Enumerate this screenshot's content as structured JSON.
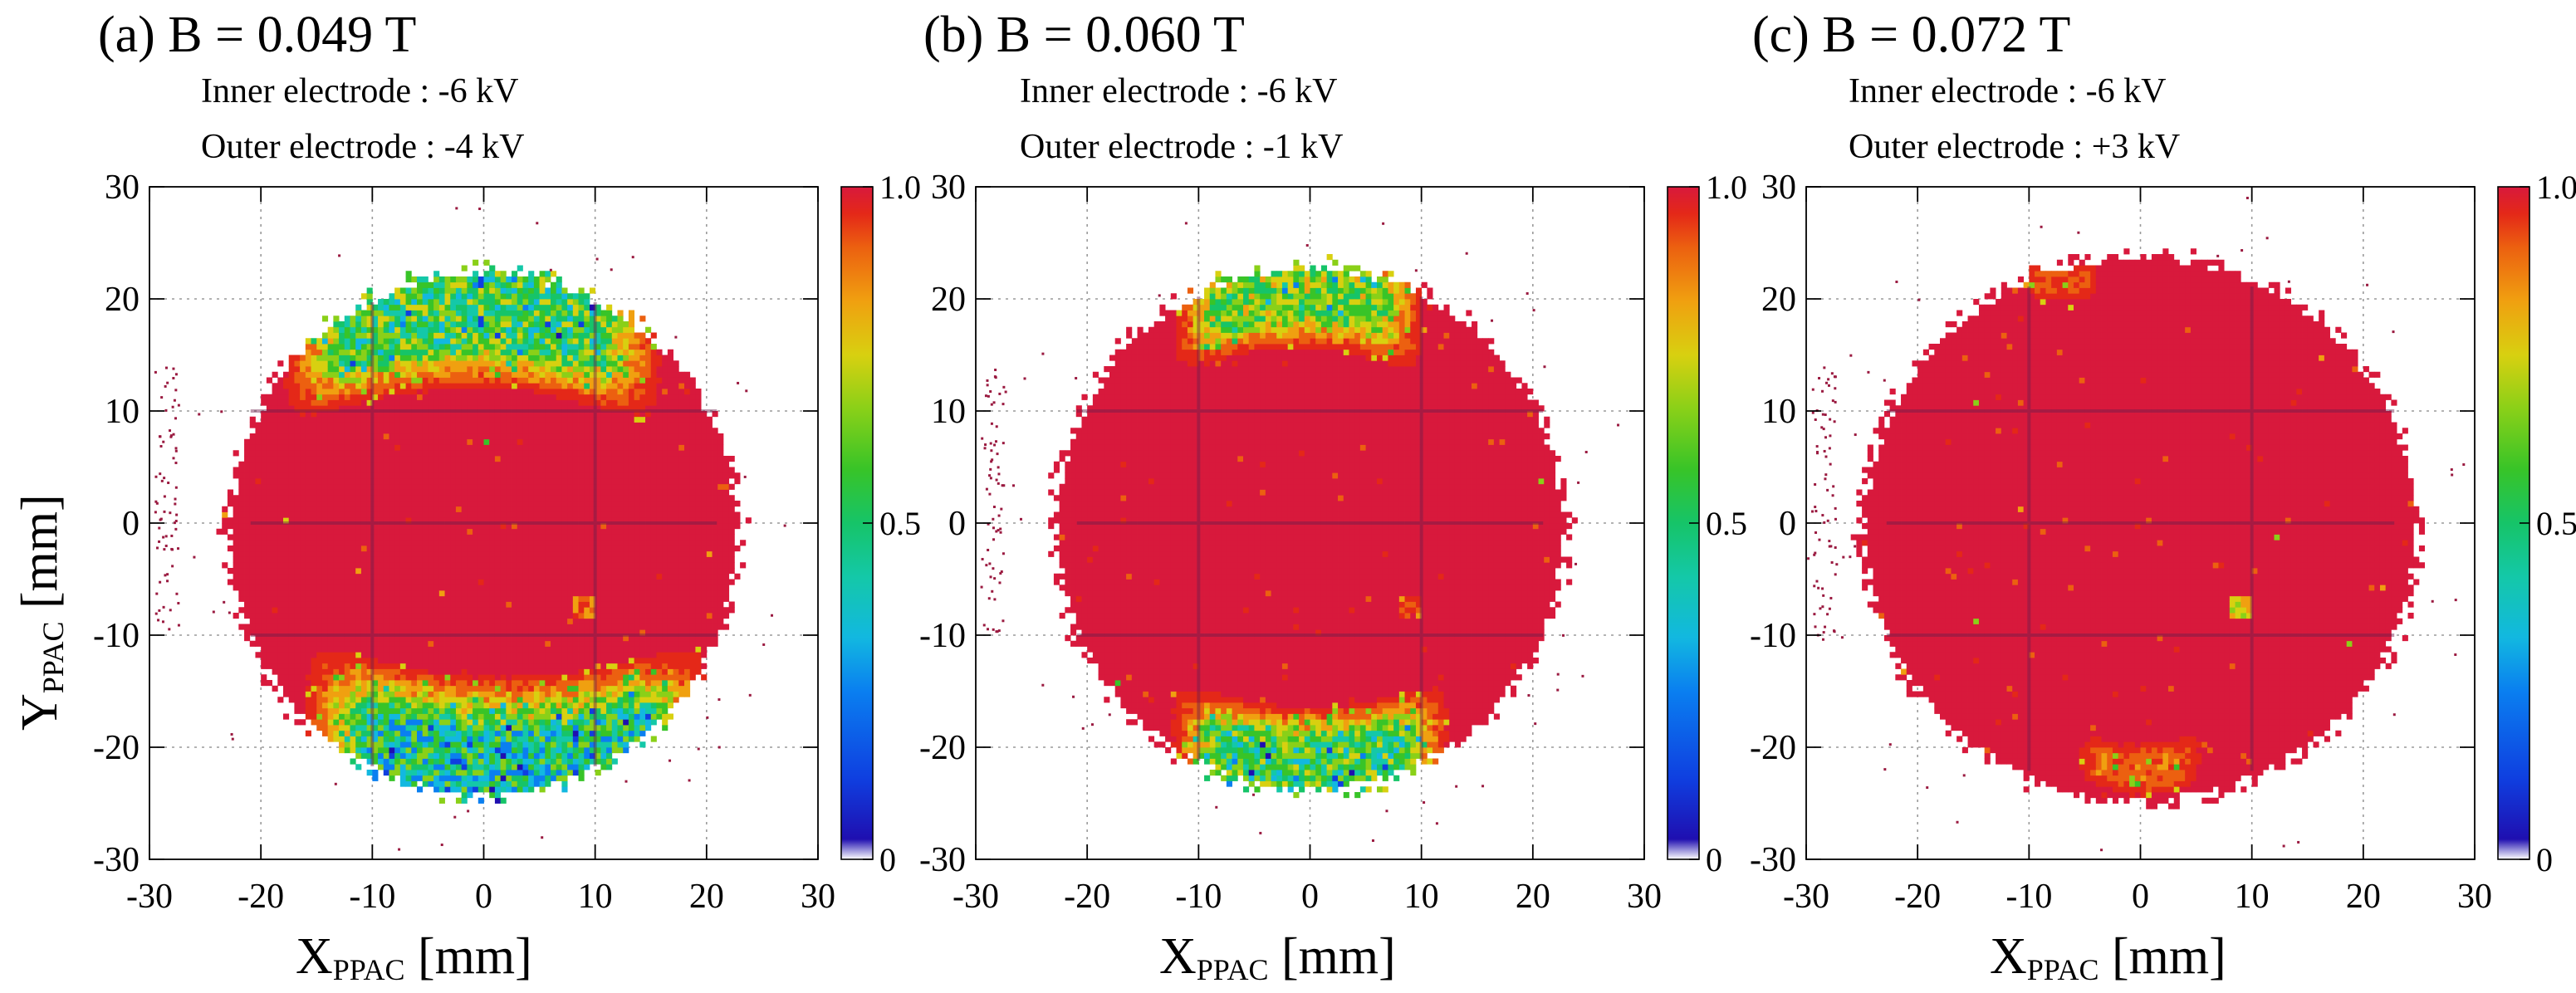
{
  "chart_data": [
    {
      "type": "heatmap",
      "title": "(a) B = 0.049 T",
      "annotations": [
        "Inner electrode : -6 kV",
        "Outer electrode : -4 kV"
      ],
      "xlabel": "XPPAC [mm]",
      "ylabel": "YPPAC [mm]",
      "xlim": [
        -30,
        30
      ],
      "ylim": [
        -30,
        30
      ],
      "x_ticks": [
        "-30",
        "-20",
        "-10",
        "0",
        "10",
        "20",
        "30"
      ],
      "y_ticks": [
        "-30",
        "-20",
        "-10",
        "0",
        "10",
        "20",
        "30"
      ],
      "grid": true,
      "z_range": [
        0,
        1.0
      ],
      "z_ticks": [
        "0",
        "0.5",
        "1.0"
      ],
      "beam_spot": {
        "center_x_mm": 0,
        "center_y_mm": -1,
        "radius_x_mm": 22.5,
        "radius_y_mm": 23
      },
      "low_efficiency_regions": [
        {
          "label": "upper band",
          "center_x_mm": -1,
          "center_y_mm": 16.5,
          "half_width_mm": 15,
          "thickness_mm": 6,
          "curvature_mm": 3,
          "min_value": 0.45
        },
        {
          "label": "lower band",
          "center_x_mm": 2,
          "center_y_mm": -19.5,
          "half_width_mm": 16,
          "thickness_mm": 7,
          "curvature_mm": -3,
          "min_value": 0.35
        }
      ],
      "hot_spot": {
        "x_mm": 9,
        "y_mm": -7.5,
        "value": 0.75
      }
    },
    {
      "type": "heatmap",
      "title": "(b) B = 0.060 T",
      "annotations": [
        "Inner electrode : -6 kV",
        "Outer electrode : -1 kV"
      ],
      "xlabel": "XPPAC [mm]",
      "ylabel": "",
      "xlim": [
        -30,
        30
      ],
      "ylim": [
        -30,
        30
      ],
      "x_ticks": [
        "-30",
        "-20",
        "-10",
        "0",
        "10",
        "20",
        "30"
      ],
      "y_ticks": [
        "-30",
        "-20",
        "-10",
        "0",
        "10",
        "20",
        "30"
      ],
      "grid": true,
      "z_range": [
        0,
        1.0
      ],
      "z_ticks": [
        "0",
        "0.5",
        "1.0"
      ],
      "beam_spot": {
        "center_x_mm": 0,
        "center_y_mm": -0.5,
        "radius_x_mm": 22.5,
        "radius_y_mm": 23
      },
      "low_efficiency_regions": [
        {
          "label": "upper band",
          "center_x_mm": -1,
          "center_y_mm": 18.5,
          "half_width_mm": 10,
          "thickness_mm": 4,
          "curvature_mm": 2,
          "min_value": 0.55
        },
        {
          "label": "lower band",
          "center_x_mm": 0,
          "center_y_mm": -20,
          "half_width_mm": 11,
          "thickness_mm": 4.5,
          "curvature_mm": -2,
          "min_value": 0.45
        }
      ],
      "hot_spot": {
        "x_mm": 9,
        "y_mm": -7.5,
        "value": 0.8
      }
    },
    {
      "type": "heatmap",
      "title": "(c) B = 0.072 T",
      "annotations": [
        "Inner electrode : -6 kV",
        "Outer electrode : +3 kV"
      ],
      "xlabel": "XPPAC [mm]",
      "ylabel": "",
      "xlim": [
        -30,
        30
      ],
      "ylim": [
        -30,
        30
      ],
      "x_ticks": [
        "-30",
        "-20",
        "-10",
        "0",
        "10",
        "20",
        "30"
      ],
      "y_ticks": [
        "-30",
        "-20",
        "-10",
        "0",
        "10",
        "20",
        "30"
      ],
      "grid": true,
      "z_range": [
        0,
        1.0
      ],
      "z_ticks": [
        "0",
        "0.5",
        "1.0"
      ],
      "beam_spot": {
        "center_x_mm": 0,
        "center_y_mm": -0.5,
        "radius_x_mm": 24.5,
        "radius_y_mm": 24
      },
      "low_efficiency_regions": [
        {
          "label": "lower edge",
          "center_x_mm": 0,
          "center_y_mm": -21,
          "half_width_mm": 5,
          "thickness_mm": 2,
          "curvature_mm": -1,
          "min_value": 0.82
        },
        {
          "label": "upper edge",
          "center_x_mm": -7,
          "center_y_mm": 21.5,
          "half_width_mm": 3,
          "thickness_mm": 1.5,
          "curvature_mm": 0,
          "min_value": 0.85
        }
      ],
      "hot_spot": {
        "x_mm": 9,
        "y_mm": -7.5,
        "value": 0.6
      }
    }
  ],
  "colors": {
    "palette": [
      "#ffffff",
      "#1f0fb0",
      "#0f3fe0",
      "#0a7ff0",
      "#12b8e0",
      "#14c8a8",
      "#16c468",
      "#38c428",
      "#8ad018",
      "#d8d010",
      "#f0a010",
      "#ec6010",
      "#e42818",
      "#d8193c"
    ],
    "saturated": "#d8193c",
    "grid": "#6d1e4c",
    "stray": "#9a1a40"
  }
}
